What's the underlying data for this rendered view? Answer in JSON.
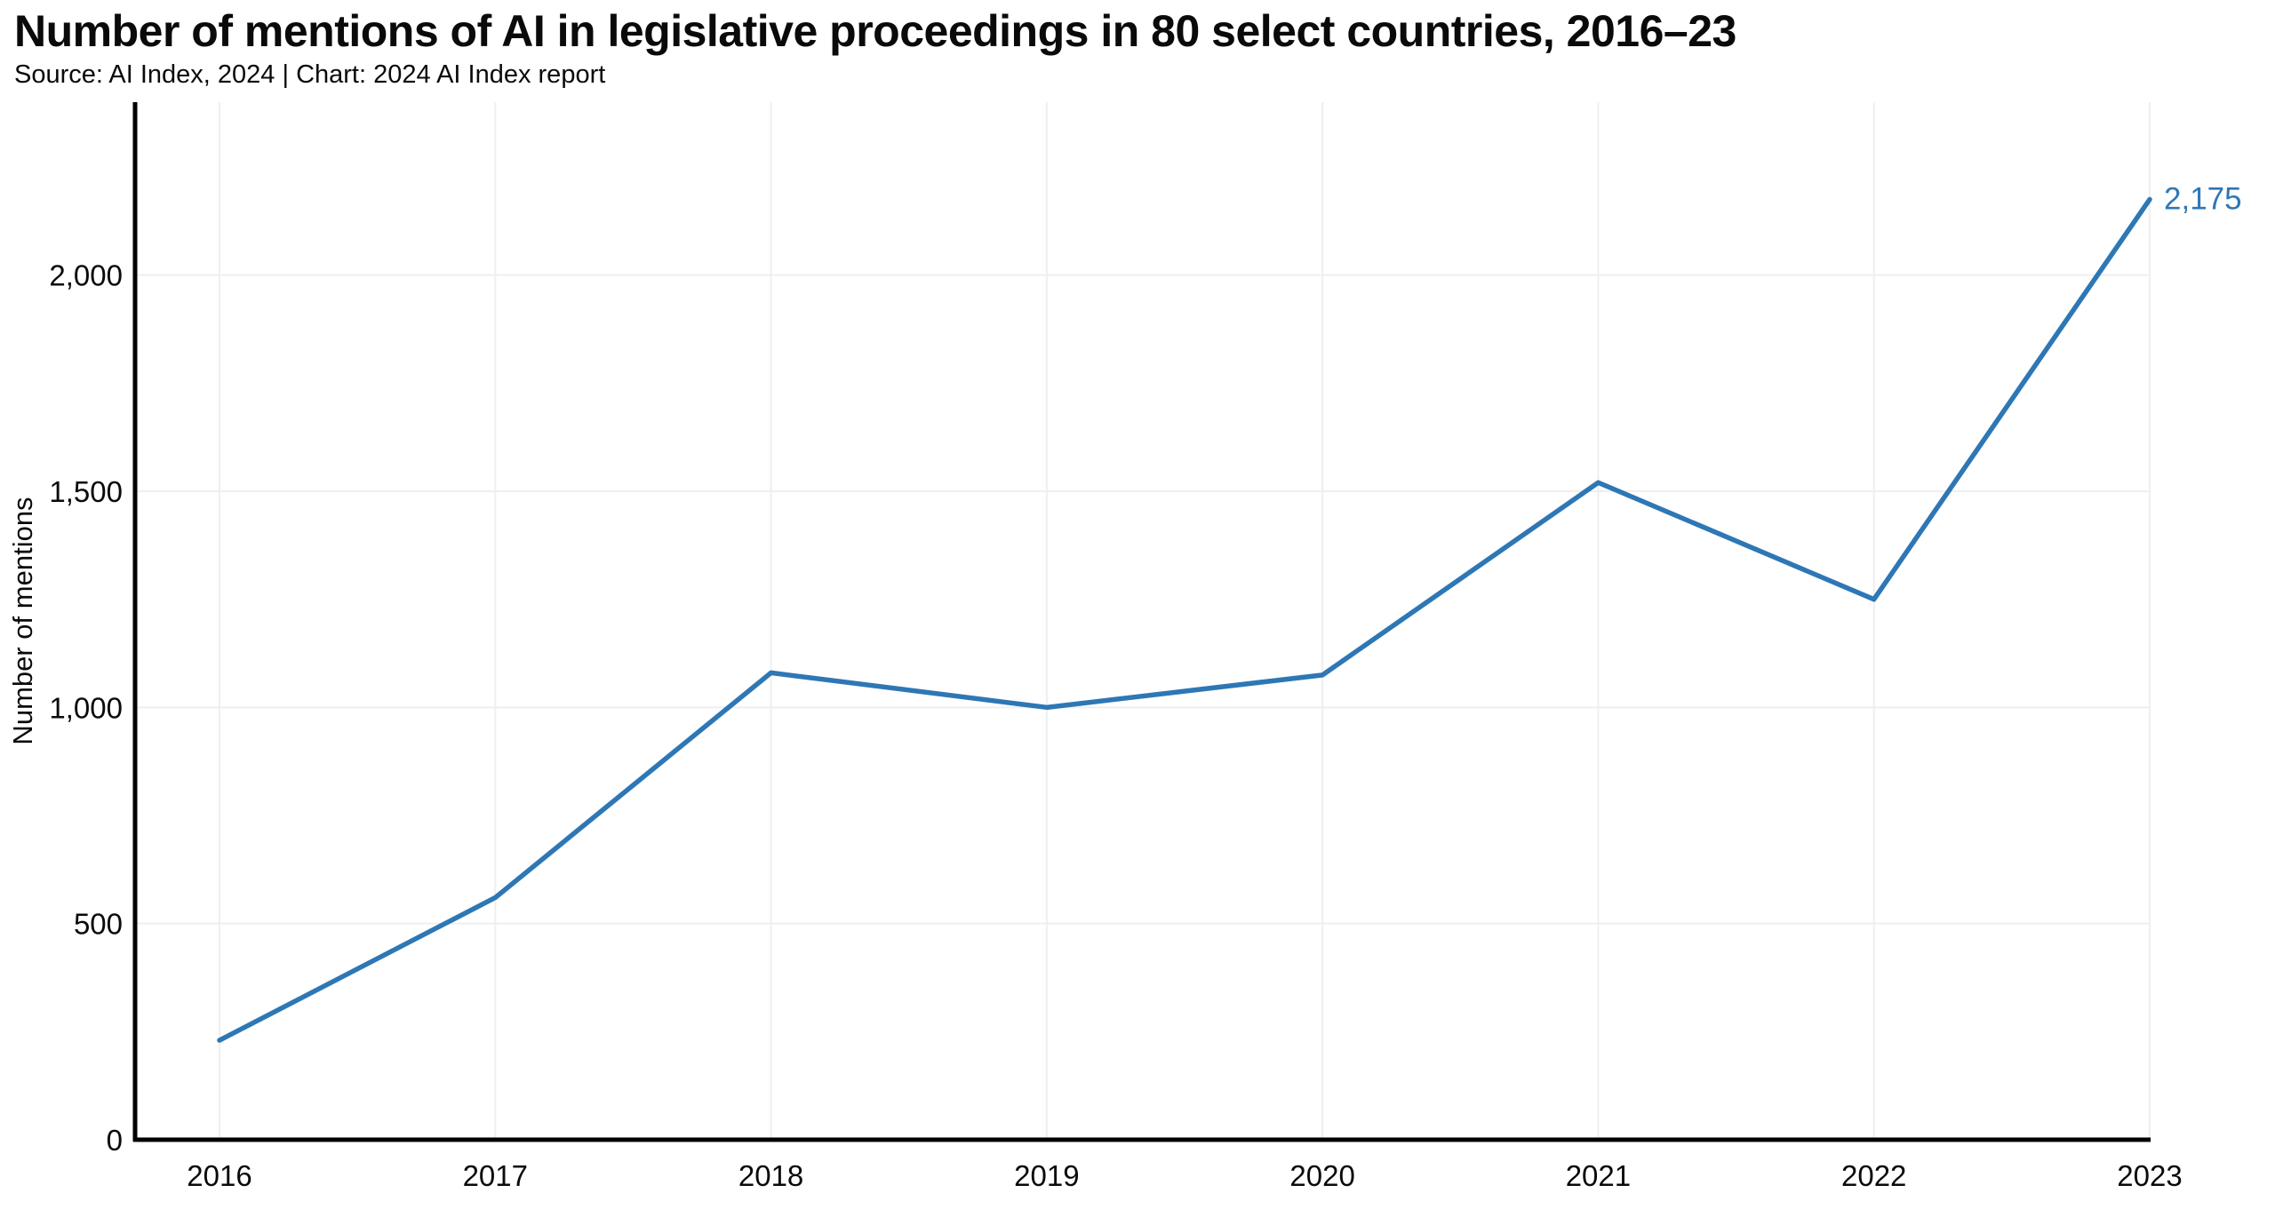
{
  "header": {
    "title": "Number of mentions of AI in legislative proceedings in 80 select countries, 2016–23",
    "subtitle": "Source: AI Index, 2024 | Chart: 2024 AI Index report"
  },
  "chart_data": {
    "type": "line",
    "title": "Number of mentions of AI in legislative proceedings in 80 select countries, 2016–23",
    "source_note": "Source: AI Index, 2024 | Chart: 2024 AI Index report",
    "categories": [
      "2016",
      "2017",
      "2018",
      "2019",
      "2020",
      "2021",
      "2022",
      "2023"
    ],
    "series": [
      {
        "name": "Number of mentions",
        "values": [
          230,
          560,
          1080,
          1000,
          1075,
          1520,
          1250,
          2175
        ]
      }
    ],
    "xlabel": "",
    "ylabel": "Number of mentions",
    "ylim": [
      0,
      2400
    ],
    "yticks": [
      0,
      500,
      1000,
      1500,
      2000
    ],
    "ytick_labels": [
      "0",
      "500",
      "1,000",
      "1,500",
      "2,000"
    ],
    "grid": true,
    "legend_position": "none",
    "end_label": "2,175",
    "colors": {
      "line": "#2e77b5",
      "end_label": "#2e77b5",
      "axis": "#000000",
      "gridline": "#efefef",
      "tick_text": "#0a0a0a"
    }
  }
}
